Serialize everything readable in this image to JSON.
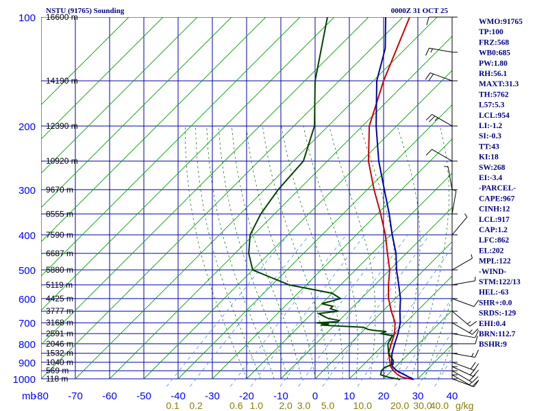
{
  "header": {
    "station_title": "NSTU (91765) Sounding",
    "valid_time": "0000Z 31 OCT 25"
  },
  "chart_data": {
    "type": "line",
    "title": "NSTU (91765) Sounding",
    "subtitle": "0000Z 31 OCT 25",
    "ylabel": "mb",
    "pressure_axis": {
      "scale": "log",
      "ylim": [
        1000,
        100
      ],
      "ticks": [
        100,
        200,
        300,
        400,
        500,
        600,
        700,
        800,
        900,
        1000
      ]
    },
    "temperature_axis": {
      "ticks": [
        -80,
        -70,
        -60,
        -50,
        -40,
        -30,
        -20,
        -10,
        0,
        10,
        20,
        30,
        40
      ]
    },
    "mixing_ratio_labels": [
      "0.1",
      "0.2",
      "0.6",
      "1.0",
      "2.0",
      "3.0",
      "5.0",
      "10.0",
      "20.0",
      "30.0",
      "40.0"
    ],
    "mixing_ratio_unit": "g/kg",
    "height_labels": [
      {
        "p": 100,
        "label": "16600 m"
      },
      {
        "p": 150,
        "label": "14190 m"
      },
      {
        "p": 200,
        "label": "12390 m"
      },
      {
        "p": 250,
        "label": "10920 m"
      },
      {
        "p": 300,
        "label": "9670 m"
      },
      {
        "p": 350,
        "label": "8555 m"
      },
      {
        "p": 400,
        "label": "7590 m"
      },
      {
        "p": 450,
        "label": "6687 m"
      },
      {
        "p": 500,
        "label": "5880 m"
      },
      {
        "p": 550,
        "label": "5119 m"
      },
      {
        "p": 600,
        "label": "4425 m"
      },
      {
        "p": 650,
        "label": "3777 m"
      },
      {
        "p": 700,
        "label": "3168 m"
      },
      {
        "p": 750,
        "label": "2591 m"
      },
      {
        "p": 800,
        "label": "2046 m"
      },
      {
        "p": 850,
        "label": "1532 m"
      },
      {
        "p": 900,
        "label": "1040 m"
      },
      {
        "p": 950,
        "label": "569 m"
      },
      {
        "p": 1000,
        "label": "118 m"
      }
    ],
    "series": [
      {
        "name": "temperature",
        "color": "#cc0000",
        "points": [
          [
            1004,
            29
          ],
          [
            1000,
            27.5
          ],
          [
            990,
            25
          ],
          [
            975,
            23
          ],
          [
            950,
            20.5
          ],
          [
            925,
            18.5
          ],
          [
            900,
            17
          ],
          [
            850,
            14
          ],
          [
            800,
            12
          ],
          [
            750,
            10
          ],
          [
            700,
            7
          ],
          [
            650,
            2.5
          ],
          [
            600,
            -2
          ],
          [
            550,
            -6
          ],
          [
            500,
            -10
          ],
          [
            450,
            -15.5
          ],
          [
            400,
            -21.5
          ],
          [
            350,
            -29
          ],
          [
            300,
            -38
          ],
          [
            250,
            -48
          ],
          [
            200,
            -58
          ],
          [
            150,
            -67
          ],
          [
            100,
            -78
          ]
        ]
      },
      {
        "name": "dewpoint",
        "color": "#004000",
        "points": [
          [
            1004,
            25
          ],
          [
            990,
            21
          ],
          [
            975,
            18
          ],
          [
            950,
            17
          ],
          [
            930,
            17
          ],
          [
            910,
            18.5
          ],
          [
            890,
            17.5
          ],
          [
            850,
            14
          ],
          [
            800,
            11
          ],
          [
            760,
            10
          ],
          [
            750,
            6
          ],
          [
            740,
            7
          ],
          [
            735,
            3
          ],
          [
            730,
            1
          ],
          [
            720,
            -1
          ],
          [
            715,
            -8
          ],
          [
            710,
            -14
          ],
          [
            705,
            -12
          ],
          [
            700,
            -16
          ],
          [
            695,
            -10
          ],
          [
            690,
            -10
          ],
          [
            680,
            -14
          ],
          [
            670,
            -16
          ],
          [
            660,
            -18
          ],
          [
            650,
            -13
          ],
          [
            640,
            -16
          ],
          [
            630,
            -16
          ],
          [
            620,
            -20
          ],
          [
            610,
            -18
          ],
          [
            600,
            -16
          ],
          [
            580,
            -20
          ],
          [
            550,
            -35
          ],
          [
            500,
            -50
          ],
          [
            450,
            -56
          ],
          [
            400,
            -61
          ],
          [
            350,
            -64
          ],
          [
            300,
            -66
          ],
          [
            250,
            -67
          ],
          [
            200,
            -74
          ],
          [
            150,
            -87
          ],
          [
            100,
            -102
          ]
        ]
      },
      {
        "name": "parcel",
        "color": "#0000aa",
        "points": [
          [
            1004,
            29
          ],
          [
            990,
            27
          ],
          [
            975,
            25
          ],
          [
            954,
            22
          ],
          [
            950,
            21.5
          ],
          [
            925,
            19
          ],
          [
            900,
            17.5
          ],
          [
            850,
            15
          ],
          [
            800,
            13
          ],
          [
            750,
            11
          ],
          [
            700,
            8.5
          ],
          [
            650,
            5
          ],
          [
            600,
            1.5
          ],
          [
            550,
            -3
          ],
          [
            500,
            -8
          ],
          [
            450,
            -13
          ],
          [
            400,
            -19.5
          ],
          [
            350,
            -26.5
          ],
          [
            300,
            -35
          ],
          [
            250,
            -45
          ],
          [
            200,
            -56
          ],
          [
            150,
            -69
          ],
          [
            122,
            -76
          ],
          [
            100,
            -85
          ]
        ]
      }
    ],
    "wind_barbs": [
      {
        "p": 1000,
        "dir": 110,
        "spd": 10
      },
      {
        "p": 975,
        "dir": 120,
        "spd": 15
      },
      {
        "p": 950,
        "dir": 120,
        "spd": 20
      },
      {
        "p": 925,
        "dir": 115,
        "spd": 20
      },
      {
        "p": 900,
        "dir": 110,
        "spd": 20
      },
      {
        "p": 850,
        "dir": 100,
        "spd": 15
      },
      {
        "p": 800,
        "dir": 90,
        "spd": 10
      },
      {
        "p": 750,
        "dir": 100,
        "spd": 10
      },
      {
        "p": 700,
        "dir": 120,
        "spd": 15
      },
      {
        "p": 650,
        "dir": 130,
        "spd": 15
      },
      {
        "p": 600,
        "dir": 110,
        "spd": 10
      },
      {
        "p": 550,
        "dir": 80,
        "spd": 5
      },
      {
        "p": 500,
        "dir": 60,
        "spd": 5
      },
      {
        "p": 400,
        "dir": 40,
        "spd": 5
      },
      {
        "p": 350,
        "dir": 10,
        "spd": 5
      },
      {
        "p": 300,
        "dir": 350,
        "spd": 5
      },
      {
        "p": 250,
        "dir": 300,
        "spd": 10
      },
      {
        "p": 200,
        "dir": 300,
        "spd": 25
      },
      {
        "p": 150,
        "dir": 290,
        "spd": 20
      },
      {
        "p": 125,
        "dir": 280,
        "spd": 15
      },
      {
        "p": 100,
        "dir": 270,
        "spd": 10
      }
    ]
  },
  "indices": [
    "WMO:91765",
    "TP:100",
    "FRZ:568",
    "WB0:685",
    "PW:1.80",
    "RH:56.1",
    "MAXT:31.3",
    "TH:5762",
    "L57:5.3",
    "LCL:954",
    "LI:-1.2",
    "SI:-0.3",
    "TT:43",
    "KI:18",
    "SW:268",
    "EI:-3.4",
    "-PARCEL-",
    "CAPE:967",
    "CINH:12",
    "LCL:917",
    "CAP:1.2",
    "LFC:862",
    "EL:202",
    "MPL:122",
    "-WIND-",
    "STM:122/13",
    "HEL:-63",
    "SHR+:0.0",
    "SRDS:-129",
    "EHI:0.4",
    "BRN:112.7",
    "BSHR:9"
  ],
  "colors": {
    "grid": "#0000aa",
    "dry_adiabat": "#00a000",
    "moist_adiabat": "#006400",
    "mixing_ratio": "#4a90d9",
    "text": "#000080"
  }
}
